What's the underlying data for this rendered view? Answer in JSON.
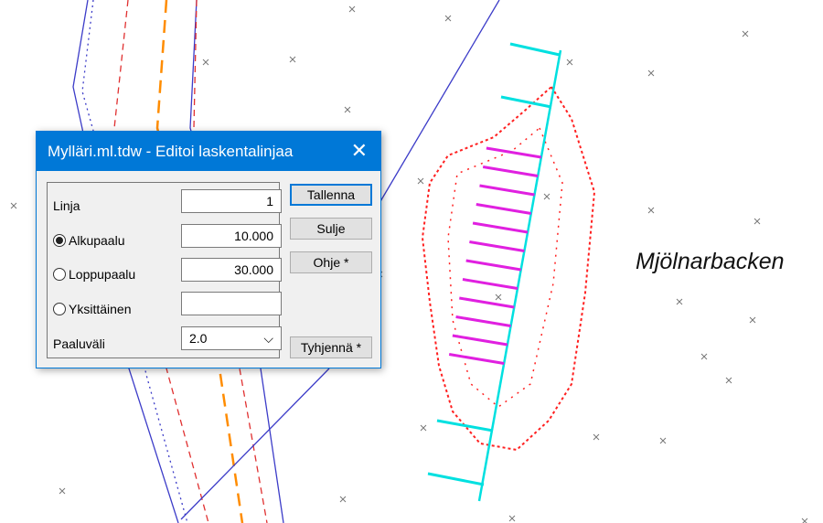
{
  "window": {
    "title": "Mylläri.ml.tdw - Editoi laskentalinjaa",
    "close_icon": "close-icon"
  },
  "fields": {
    "linja": {
      "label": "Linja",
      "value": "1"
    },
    "alkupaalu": {
      "label": "Alkupaalu",
      "value": "10.000",
      "selected": true
    },
    "loppupaalu": {
      "label": "Loppupaalu",
      "value": "30.000",
      "selected": false
    },
    "yksittainen": {
      "label": "Yksittäinen",
      "value": "",
      "selected": false
    },
    "paaluvali": {
      "label": "Paaluväli",
      "value": "2.0"
    }
  },
  "buttons": {
    "save": "Tallenna",
    "close": "Sulje",
    "help": "Ohje *",
    "clear": "Tyhjennä *"
  },
  "map": {
    "place_label": "Mjölnarbacken",
    "colors": {
      "road_edge": "#3c3cc8",
      "dashed": "#e03030",
      "center": "#ff8c00",
      "alignment": "#00e5e5",
      "sections": "#e020e0",
      "contour": "#ff2020"
    }
  }
}
